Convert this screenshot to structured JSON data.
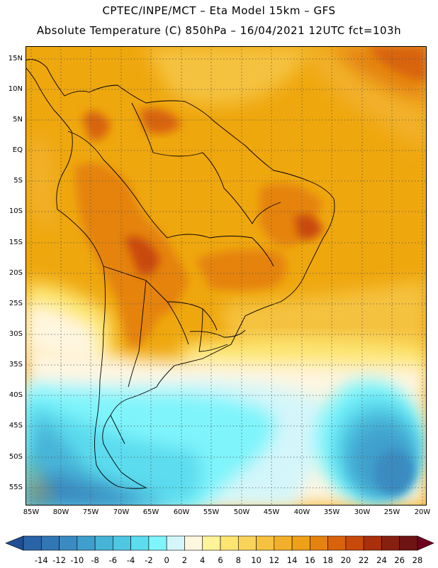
{
  "title_line1": "CPTEC/INPE/MCT –  Eta Model 15km – GFS",
  "title_line2": "Absolute Temperature (C) 850hPa – 16/04/2021 12UTC fct=103h",
  "lat_labels": [
    "15N",
    "10N",
    "5N",
    "EQ",
    "5S",
    "10S",
    "15S",
    "20S",
    "25S",
    "30S",
    "35S",
    "40S",
    "45S",
    "50S",
    "55S"
  ],
  "lon_labels": [
    "85W",
    "80W",
    "75W",
    "70W",
    "65W",
    "60W",
    "55W",
    "50W",
    "45W",
    "40W",
    "35W",
    "30W",
    "25W",
    "20W"
  ],
  "colorbar": {
    "labels": [
      "-14",
      "-12",
      "-10",
      "-8",
      "-6",
      "-4",
      "-2",
      "0",
      "2",
      "4",
      "6",
      "8",
      "10",
      "12",
      "14",
      "16",
      "18",
      "20",
      "22",
      "24",
      "26",
      "28"
    ],
    "colors": [
      "#1f4e95",
      "#2a64a8",
      "#3277b5",
      "#3a8bc1",
      "#3f9fcc",
      "#46b3d7",
      "#4fc7e3",
      "#5cdcee",
      "#7ff4fb",
      "#d4f6fa",
      "#fff6e0",
      "#fff39a",
      "#fde572",
      "#fad45a",
      "#f5c23f",
      "#f2b02a",
      "#eea018",
      "#e58310",
      "#d8630c",
      "#c9490a",
      "#a9300b",
      "#882010",
      "#6e1414",
      "#720020"
    ]
  }
}
